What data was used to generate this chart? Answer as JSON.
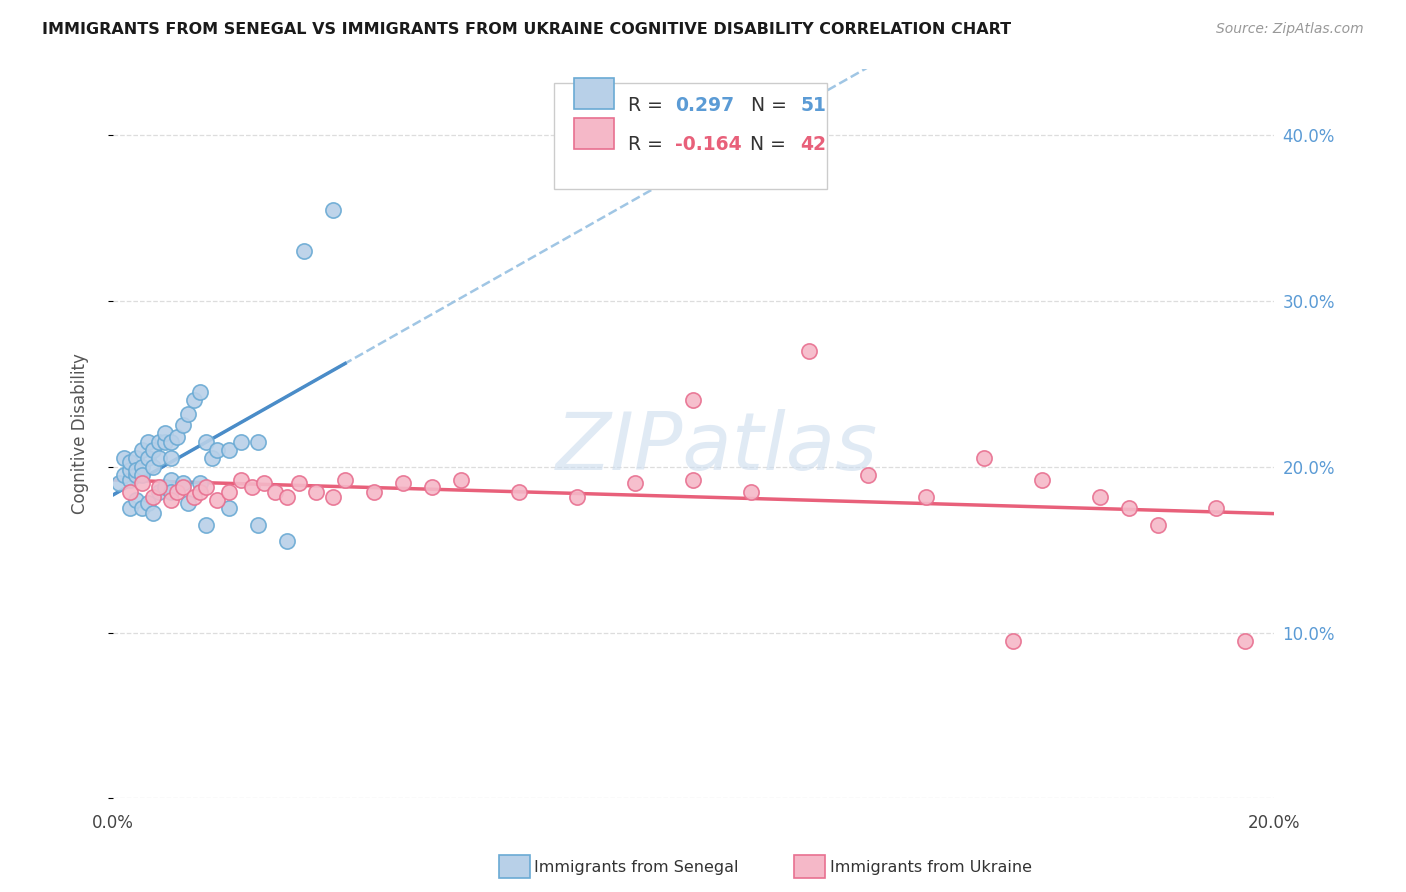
{
  "title": "IMMIGRANTS FROM SENEGAL VS IMMIGRANTS FROM UKRAINE COGNITIVE DISABILITY CORRELATION CHART",
  "source": "Source: ZipAtlas.com",
  "ylabel": "Cognitive Disability",
  "xlim": [
    0.0,
    0.2
  ],
  "ylim": [
    0.0,
    0.44
  ],
  "ytick_vals": [
    0.0,
    0.1,
    0.2,
    0.3,
    0.4
  ],
  "ytick_labels": [
    "",
    "10.0%",
    "20.0%",
    "30.0%",
    "40.0%"
  ],
  "xtick_vals": [
    0.0,
    0.02,
    0.04,
    0.06,
    0.08,
    0.1,
    0.12,
    0.14,
    0.16,
    0.18,
    0.2
  ],
  "legend_R1": "0.297",
  "legend_N1": "51",
  "legend_R2": "-0.164",
  "legend_N2": "42",
  "color_senegal_fill": "#b8d0e8",
  "color_senegal_edge": "#6aaad4",
  "color_ukraine_fill": "#f5b8c8",
  "color_ukraine_edge": "#e87090",
  "color_line_blue_solid": "#4a8cc8",
  "color_line_blue_dash": "#90bce0",
  "color_line_pink": "#e8607a",
  "color_grid": "#dddddd",
  "color_ytick": "#5b9bd5",
  "watermark_color": "#ccdcee",
  "senegal_x": [
    0.001,
    0.002,
    0.002,
    0.003,
    0.003,
    0.003,
    0.004,
    0.004,
    0.004,
    0.005,
    0.005,
    0.005,
    0.006,
    0.006,
    0.007,
    0.007,
    0.008,
    0.008,
    0.009,
    0.009,
    0.01,
    0.01,
    0.011,
    0.012,
    0.013,
    0.014,
    0.015,
    0.016,
    0.017,
    0.018,
    0.02,
    0.022,
    0.025,
    0.008,
    0.009,
    0.01,
    0.012,
    0.015,
    0.02,
    0.025,
    0.03,
    0.033,
    0.038,
    0.003,
    0.004,
    0.005,
    0.006,
    0.007,
    0.01,
    0.013,
    0.016
  ],
  "senegal_y": [
    0.19,
    0.195,
    0.205,
    0.192,
    0.198,
    0.203,
    0.195,
    0.205,
    0.198,
    0.2,
    0.21,
    0.195,
    0.205,
    0.215,
    0.2,
    0.21,
    0.215,
    0.205,
    0.215,
    0.22,
    0.205,
    0.215,
    0.218,
    0.225,
    0.232,
    0.24,
    0.245,
    0.215,
    0.205,
    0.21,
    0.21,
    0.215,
    0.215,
    0.185,
    0.188,
    0.192,
    0.19,
    0.19,
    0.175,
    0.165,
    0.155,
    0.33,
    0.355,
    0.175,
    0.18,
    0.175,
    0.178,
    0.172,
    0.185,
    0.178,
    0.165
  ],
  "ukraine_x": [
    0.003,
    0.005,
    0.007,
    0.008,
    0.01,
    0.011,
    0.012,
    0.014,
    0.015,
    0.016,
    0.018,
    0.02,
    0.022,
    0.024,
    0.026,
    0.028,
    0.03,
    0.032,
    0.035,
    0.038,
    0.04,
    0.045,
    0.05,
    0.055,
    0.06,
    0.07,
    0.08,
    0.09,
    0.1,
    0.11,
    0.12,
    0.13,
    0.14,
    0.15,
    0.16,
    0.17,
    0.175,
    0.18,
    0.19,
    0.195,
    0.1,
    0.155
  ],
  "ukraine_y": [
    0.185,
    0.19,
    0.182,
    0.188,
    0.18,
    0.185,
    0.188,
    0.182,
    0.185,
    0.188,
    0.18,
    0.185,
    0.192,
    0.188,
    0.19,
    0.185,
    0.182,
    0.19,
    0.185,
    0.182,
    0.192,
    0.185,
    0.19,
    0.188,
    0.192,
    0.185,
    0.182,
    0.19,
    0.192,
    0.185,
    0.27,
    0.195,
    0.182,
    0.205,
    0.192,
    0.182,
    0.175,
    0.165,
    0.175,
    0.095,
    0.24,
    0.095
  ]
}
